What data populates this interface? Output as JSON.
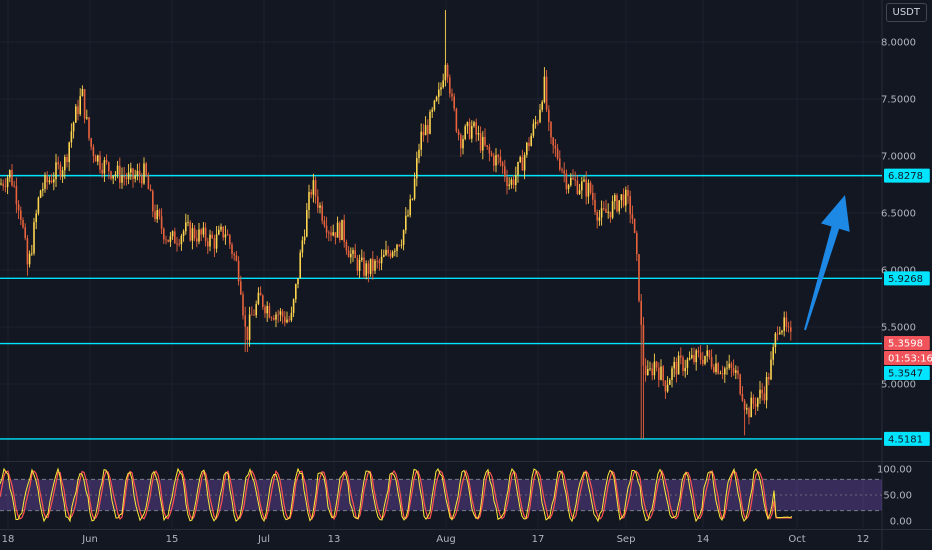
{
  "currency": "USDT",
  "price_axis": {
    "ticks": [
      "8.0000",
      "7.5000",
      "7.0000",
      "6.5000",
      "6.0000",
      "5.5000",
      "5.0000"
    ]
  },
  "time_axis": {
    "ticks": [
      "18",
      "Jun",
      "15",
      "Jul",
      "13",
      "Aug",
      "17",
      "Sep",
      "14",
      "Oct",
      "12"
    ]
  },
  "levels": [
    {
      "label": "6.8278",
      "value": 6.8278,
      "color": "#00e5ff"
    },
    {
      "label": "5.9268",
      "value": 5.9268,
      "color": "#00e5ff"
    },
    {
      "label": "5.3547",
      "value": 5.3547,
      "color": "#00e5ff"
    },
    {
      "label": "4.5181",
      "value": 4.5181,
      "color": "#00e5ff"
    }
  ],
  "last_price": {
    "label": "5.3598",
    "value": 5.3598,
    "countdown": "01:53:16",
    "color": "#f0545a"
  },
  "oscillator": {
    "ticks": [
      "100.00",
      "50.00",
      "0.00"
    ],
    "band_upper": 80,
    "band_lower": 20
  },
  "colors": {
    "background": "#131722",
    "grid": "#1e222d",
    "up": "#ffd54f",
    "down": "#e8623c",
    "arrow": "#1e88e5",
    "osc_fill": "#7e57c2",
    "osc_k": "#ffeb3b",
    "osc_d": "#ff5252"
  },
  "chart_data": {
    "type": "candlestick",
    "ylim": [
      4.35,
      8.3
    ],
    "key_points": [
      {
        "x": "18",
        "close": 6.7
      },
      {
        "x": "Jun",
        "close": 7.2
      },
      {
        "x": "15",
        "close": 6.3
      },
      {
        "x": "Jul",
        "close": 5.6
      },
      {
        "x": "13",
        "close": 6.4
      },
      {
        "x": "Aug",
        "close": 7.4
      },
      {
        "x": "17",
        "close": 7.1
      },
      {
        "x": "Sep",
        "close": 6.5
      },
      {
        "x": "14",
        "close": 5.1
      },
      {
        "x": "Oct",
        "close": 5.36
      }
    ],
    "high": 8.28,
    "low": 4.52
  }
}
